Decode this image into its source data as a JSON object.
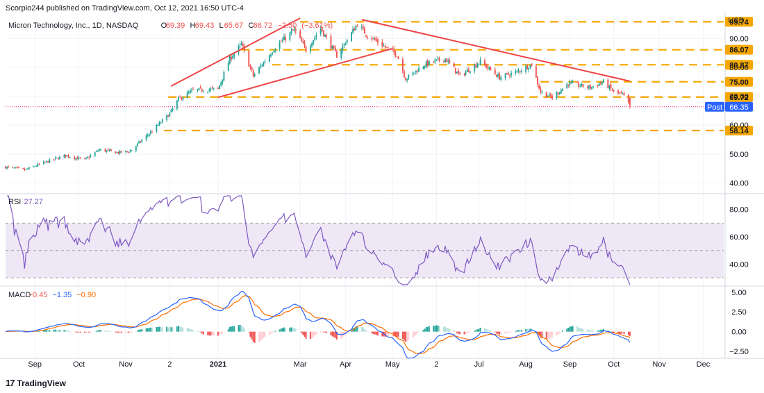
{
  "banner": "Scorpio244 published on TradingView.com, Oct 12, 2021 16:50 UTC-4",
  "footer": {
    "logo_icon": "tradingview-logo-icon",
    "text": "TradingView",
    "logo_text": "17"
  },
  "colors": {
    "up": "#26a69a",
    "down": "#ef5350",
    "level": "#f5a700",
    "trend": "#ef4444",
    "rsi_line": "#7e57c2",
    "rsi_band": "#ede7f6",
    "macd_line": "#2962ff",
    "signal_line": "#ff6d00",
    "hist_up_strong": "#26a69a",
    "hist_up_weak": "#b2dfdb",
    "hist_down_strong": "#ef5350",
    "hist_down_weak": "#ffcdd2",
    "post_badge": "#2962ff",
    "grid": "#f0f3fa",
    "axis_text": "#131722"
  },
  "chart_data": [
    {
      "type": "candlestick",
      "title": "Micron Technology, Inc., 1D, NASDAQ",
      "ohlc_header": {
        "o_label": "O",
        "o": "69.39",
        "h_label": "H",
        "h": "69.43",
        "l_label": "L",
        "l": "65.67",
        "c_label": "C",
        "c": "66.72",
        "change": "−2.50",
        "change_pct": "(−3.61%)"
      },
      "currency": "USD",
      "ylim": [
        37,
        98
      ],
      "y_ticks": [
        40,
        50,
        60,
        70,
        80,
        90
      ],
      "y_tick_labels": [
        "40.00",
        "50.00",
        "60.00",
        "70.00",
        "80.00",
        "90.00"
      ],
      "x_tick_labels": [
        "Sep",
        "Oct",
        "Nov",
        "2",
        "2021",
        "Mar",
        "Apr",
        "May",
        "2",
        "Jul",
        "Aug",
        "Sep",
        "Oct",
        "Nov",
        "Dec"
      ],
      "x_tick_dates": [
        "2020-09-01",
        "2020-10-01",
        "2020-11-02",
        "2020-12-02",
        "2021-01-04",
        "2021-03-01",
        "2021-04-01",
        "2021-05-03",
        "2021-06-02",
        "2021-07-01",
        "2021-08-02",
        "2021-09-01",
        "2021-10-01",
        "2021-11-01",
        "2021-12-01"
      ],
      "x_range": [
        "2020-08-12",
        "2021-12-15"
      ],
      "close_anchors": [
        [
          "2020-08-12",
          45.5
        ],
        [
          "2020-08-25",
          44.5
        ],
        [
          "2020-09-10",
          47.5
        ],
        [
          "2020-09-22",
          49.5
        ],
        [
          "2020-10-05",
          48.0
        ],
        [
          "2020-10-15",
          51.5
        ],
        [
          "2020-10-28",
          50.5
        ],
        [
          "2020-11-05",
          51.0
        ],
        [
          "2020-11-20",
          58.0
        ],
        [
          "2020-12-02",
          64.0
        ],
        [
          "2020-12-08",
          69.0
        ],
        [
          "2020-12-18",
          72.0
        ],
        [
          "2021-01-04",
          72.5
        ],
        [
          "2021-01-12",
          83.0
        ],
        [
          "2021-01-20",
          88.0
        ],
        [
          "2021-01-28",
          77.0
        ],
        [
          "2021-02-12",
          87.0
        ],
        [
          "2021-02-25",
          93.0
        ],
        [
          "2021-03-05",
          86.0
        ],
        [
          "2021-03-15",
          93.5
        ],
        [
          "2021-03-26",
          84.0
        ],
        [
          "2021-04-09",
          95.0
        ],
        [
          "2021-04-15",
          91.5
        ],
        [
          "2021-04-28",
          87.0
        ],
        [
          "2021-05-06",
          84.5
        ],
        [
          "2021-05-12",
          76.0
        ],
        [
          "2021-05-25",
          81.0
        ],
        [
          "2021-06-08",
          83.0
        ],
        [
          "2021-06-18",
          77.0
        ],
        [
          "2021-07-02",
          82.0
        ],
        [
          "2021-07-15",
          76.5
        ],
        [
          "2021-07-27",
          78.5
        ],
        [
          "2021-08-06",
          81.0
        ],
        [
          "2021-08-12",
          71.5
        ],
        [
          "2021-08-20",
          69.5
        ],
        [
          "2021-08-31",
          74.5
        ],
        [
          "2021-09-15",
          73.0
        ],
        [
          "2021-09-24",
          75.0
        ],
        [
          "2021-10-01",
          71.5
        ],
        [
          "2021-10-07",
          70.5
        ],
        [
          "2021-10-12",
          66.72
        ]
      ],
      "price_levels": [
        {
          "value": 95.74,
          "label": "95.74"
        },
        {
          "value": 86.07,
          "label": "86.07"
        },
        {
          "value": 80.87,
          "label": "80.87"
        },
        {
          "value": 75.0,
          "label": "75.00"
        },
        {
          "value": 69.72,
          "label": "69.72"
        },
        {
          "value": 58.14,
          "label": "58.14"
        }
      ],
      "level_starts": {
        "95.74": "2021-03-01",
        "86.07": "2021-01-20",
        "80.87": "2021-02-10",
        "75.00": "2021-08-12",
        "69.72": "2020-12-01",
        "58.14": "2020-11-28"
      },
      "post_marker": {
        "label": "Post",
        "value": 66.35,
        "value_label": "66.35"
      },
      "trendlines": [
        {
          "from": [
            "2020-12-03",
            73.5
          ],
          "to": [
            "2021-03-01",
            97.0
          ]
        },
        {
          "from": [
            "2021-01-04",
            69.6
          ],
          "to": [
            "2021-05-03",
            86.5
          ]
        },
        {
          "from": [
            "2021-04-12",
            96.5
          ],
          "to": [
            "2021-10-12",
            75.2
          ]
        }
      ]
    },
    {
      "type": "line",
      "name": "RSI",
      "label": "RSI",
      "value_label": "27.27",
      "ylim": [
        25,
        90
      ],
      "y_ticks": [
        40,
        60,
        80
      ],
      "y_tick_labels": [
        "40.00",
        "60.00",
        "80.00"
      ],
      "band": [
        30,
        70
      ],
      "midline": 50,
      "period": 14
    },
    {
      "type": "line",
      "name": "MACD",
      "label": "MACD",
      "values": {
        "histogram": "−0.45",
        "macd": "−1.35",
        "signal": "−0.90"
      },
      "ylim": [
        -3.2,
        5.6
      ],
      "y_ticks": [
        -2.5,
        0,
        2.5,
        5
      ],
      "y_tick_labels": [
        "−2.50",
        "0.00",
        "2.50",
        "5.00"
      ]
    }
  ]
}
